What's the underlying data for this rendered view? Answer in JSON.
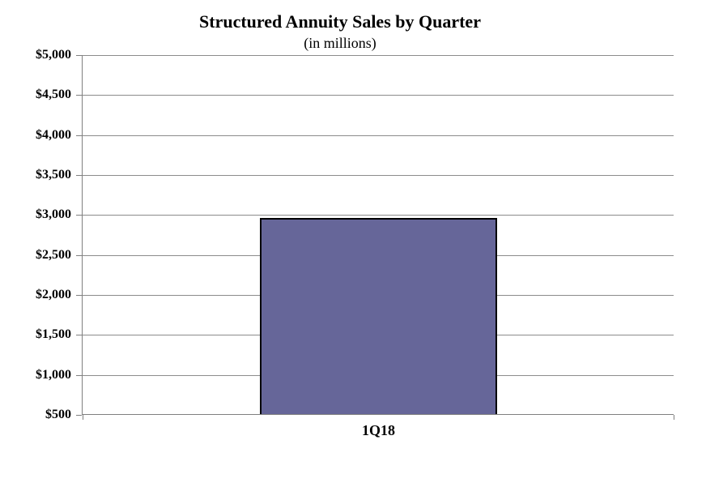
{
  "chart_data": {
    "type": "bar",
    "title": "Structured Annuity Sales by Quarter",
    "subtitle": "(in millions)",
    "categories": [
      "1Q18"
    ],
    "values": [
      2950
    ],
    "xlabel": "",
    "ylabel": "",
    "ylim": [
      500,
      5000
    ],
    "ytick_step": 500,
    "ytick_labels_top_to_bottom": [
      "$5,000",
      "$4,500",
      "$4,000",
      "$3,500",
      "$3,000",
      "$2,500",
      "$2,000",
      "$1,500",
      "$1,000",
      "$500"
    ],
    "grid": true,
    "legend": "none",
    "colors": {
      "bar_fill": "#666699",
      "bar_border": "#000000",
      "axis_line": "#808080",
      "gridline": "#8c8c8c",
      "text": "#000000",
      "background": "#ffffff"
    }
  }
}
